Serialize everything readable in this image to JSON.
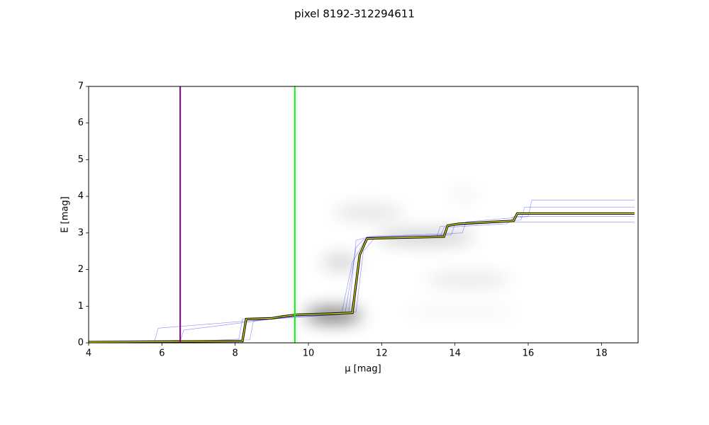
{
  "chart_data": {
    "type": "line",
    "title": "pixel 8192-312294611",
    "x_label": "μ [mag]",
    "y_label": "E [mag]",
    "xlim": [
      4,
      19
    ],
    "ylim": [
      0,
      7
    ],
    "xticks": [
      4,
      6,
      8,
      10,
      12,
      14,
      16,
      18
    ],
    "yticks": [
      0,
      1,
      2,
      3,
      4,
      5,
      6,
      7
    ],
    "vlines": [
      {
        "x": 6.5,
        "color": "#800080"
      },
      {
        "x": 9.63,
        "color": "#00ff00"
      }
    ],
    "samples": [
      {
        "color": "#0000ff",
        "x": [
          4,
          7,
          8.1,
          8.2,
          9.5,
          11.0,
          11.3,
          11.5,
          13.5,
          13.6,
          15.5,
          15.6,
          18.9
        ],
        "values": [
          0,
          0.05,
          0.1,
          0.65,
          0.72,
          0.8,
          2.6,
          2.82,
          2.88,
          3.18,
          3.3,
          3.45,
          3.45
        ]
      },
      {
        "color": "#0000ff",
        "x": [
          4,
          6.5,
          6.6,
          9.0,
          10.9,
          11.2,
          11.6,
          13.9,
          14.0,
          15.8,
          15.9,
          18.9
        ],
        "values": [
          0,
          0.05,
          0.35,
          0.65,
          0.78,
          2.2,
          2.9,
          2.95,
          3.25,
          3.35,
          3.7,
          3.7
        ]
      },
      {
        "color": "#0000ff",
        "x": [
          4,
          8.4,
          8.5,
          9.9,
          11.3,
          11.5,
          11.8,
          13.6,
          13.7,
          15.4,
          15.5,
          18.9
        ],
        "values": [
          0.02,
          0.08,
          0.6,
          0.75,
          0.85,
          2.5,
          2.85,
          2.9,
          3.15,
          3.25,
          3.3,
          3.3
        ]
      },
      {
        "color": "#0000ff",
        "x": [
          4,
          5.8,
          5.9,
          9.6,
          11.1,
          11.3,
          11.7,
          14.2,
          14.3,
          16.0,
          16.1,
          18.9
        ],
        "values": [
          0,
          0.05,
          0.4,
          0.7,
          0.8,
          2.8,
          2.9,
          3.0,
          3.3,
          3.45,
          3.9,
          3.9
        ]
      }
    ],
    "series": [
      {
        "color": "#000000",
        "highlight": "#ffff00",
        "x": [
          4,
          8.2,
          8.3,
          9,
          9.3,
          9.7,
          10.5,
          11.2,
          11.4,
          11.6,
          12.5,
          13,
          13.7,
          13.8,
          14.1,
          15,
          15.6,
          15.7,
          18.9
        ],
        "values": [
          0.02,
          0.05,
          0.65,
          0.67,
          0.72,
          0.77,
          0.79,
          0.82,
          2.4,
          2.85,
          2.87,
          2.88,
          2.9,
          3.2,
          3.25,
          3.3,
          3.33,
          3.53,
          3.53
        ]
      }
    ]
  }
}
